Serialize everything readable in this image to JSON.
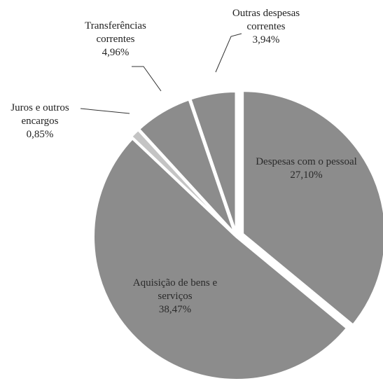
{
  "chart_data": {
    "type": "pie",
    "categories": [
      "Despesas com o pessoal",
      "Aquisição de bens e serviços",
      "Juros e outros encargos",
      "Transferências correntes",
      "Outras despesas correntes"
    ],
    "values": [
      27.1,
      38.47,
      0.85,
      4.96,
      3.94
    ],
    "value_labels": [
      "27,10%",
      "38,47%",
      "0,85%",
      "4,96%",
      "3,94%"
    ],
    "colors": [
      "#8c8c8c",
      "#8c8c8c",
      "#c4c4c4",
      "#8c8c8c",
      "#8c8c8c"
    ]
  }
}
